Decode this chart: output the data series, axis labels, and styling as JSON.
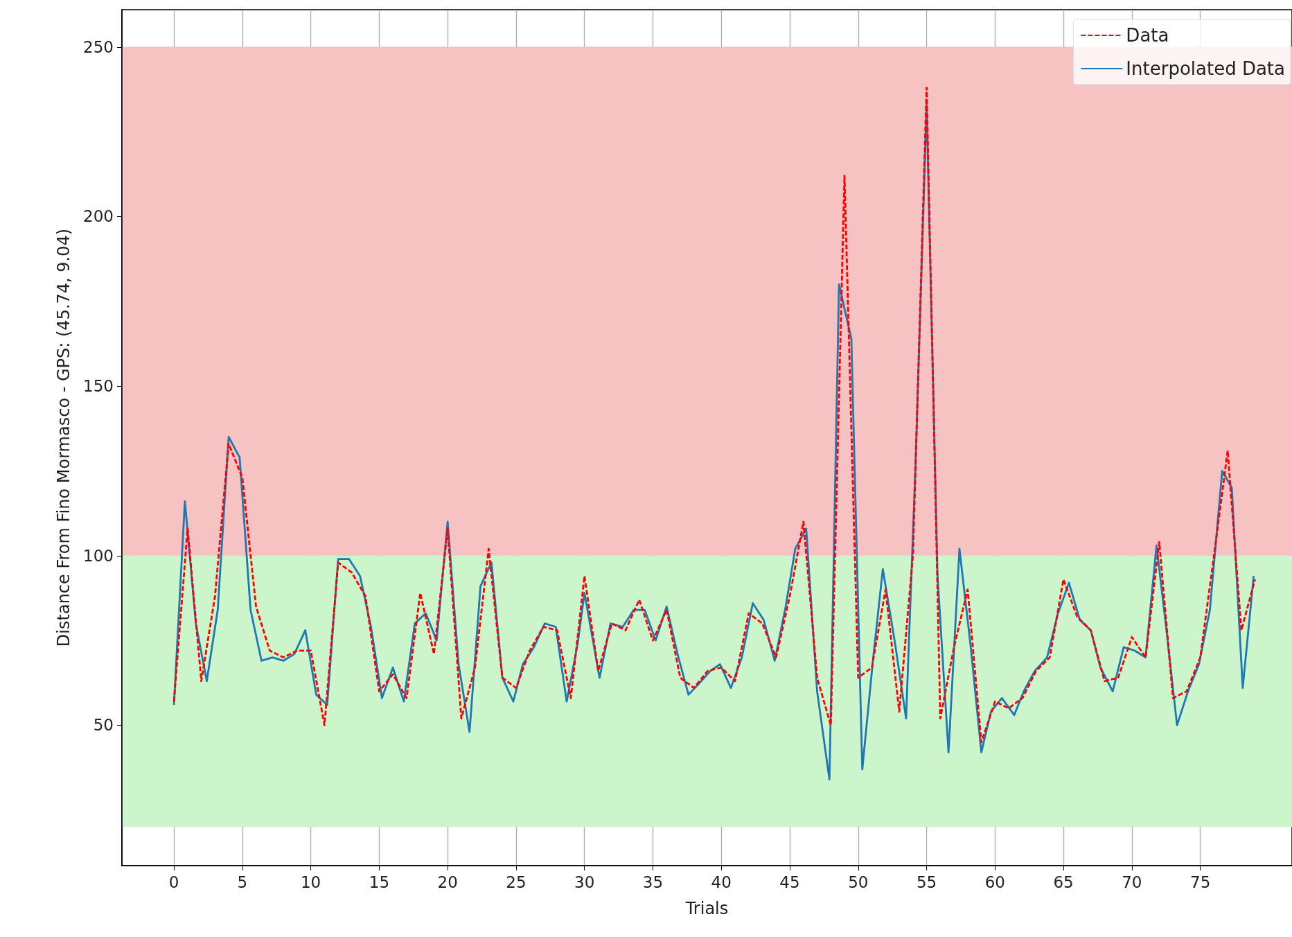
{
  "chart_data": {
    "type": "line",
    "xlabel": "Trials",
    "ylabel": "Distance From Fino Mormasco - GPS: (45.74, 9.04)",
    "xlim": [
      -3.8,
      81.7
    ],
    "ylim": [
      8.6,
      261
    ],
    "xticks": [
      0,
      5,
      10,
      15,
      20,
      25,
      30,
      35,
      40,
      45,
      50,
      55,
      60,
      65,
      70,
      75
    ],
    "yticks": [
      50,
      100,
      150,
      200,
      250
    ],
    "grid": true,
    "legend": "top right",
    "marker": "none",
    "bands": [
      {
        "axis": "y",
        "from": 20,
        "to": 100,
        "color": "#ccf5cc"
      },
      {
        "axis": "y",
        "from": 100,
        "to": 250,
        "color": "#f6c2c2"
      }
    ],
    "series": [
      {
        "name": "Data",
        "color": "#ff0000",
        "line_style": "dashed",
        "x": [
          0,
          1,
          2,
          3,
          4,
          5,
          6,
          7,
          8,
          9,
          10,
          11,
          12,
          13,
          14,
          15,
          16,
          17,
          18,
          19,
          20,
          21,
          22,
          23,
          24,
          25,
          26,
          27,
          28,
          29,
          30,
          31,
          32,
          33,
          34,
          35,
          36,
          37,
          38,
          39,
          40,
          41,
          42,
          43,
          44,
          45,
          46,
          47,
          48,
          49,
          50,
          51,
          52,
          53,
          54,
          55,
          56,
          57,
          58,
          59,
          60,
          61,
          62,
          63,
          64,
          65,
          66,
          67,
          68,
          69,
          70,
          71,
          72,
          73,
          74,
          75,
          76,
          77,
          78,
          79
        ],
        "values": [
          57,
          108,
          63,
          88,
          133,
          123,
          85,
          72,
          70,
          72,
          72,
          50,
          98,
          95,
          88,
          60,
          65,
          58,
          89,
          71,
          108,
          52,
          67,
          102,
          64,
          61,
          72,
          79,
          78,
          58,
          94,
          66,
          80,
          78,
          87,
          75,
          84,
          64,
          61,
          66,
          67,
          63,
          83,
          80,
          70,
          88,
          110,
          64,
          50,
          212,
          64,
          67,
          90,
          54,
          100,
          238,
          52,
          73,
          90,
          45,
          57,
          55,
          58,
          66,
          70,
          93,
          82,
          78,
          63,
          64,
          76,
          70,
          104,
          58,
          60,
          70,
          100,
          131,
          78,
          93
        ]
      },
      {
        "name": "Interpolated Data",
        "color": "#1f77b4",
        "line_style": "solid",
        "x": [
          0,
          0.8,
          1.6,
          2.4,
          3.2,
          4.0,
          4.8,
          5.6,
          6.4,
          7.2,
          8.0,
          8.8,
          9.6,
          10.4,
          11.2,
          12.0,
          12.8,
          13.6,
          14.4,
          15.2,
          16.0,
          16.8,
          17.6,
          18.4,
          19.2,
          20.0,
          20.8,
          21.6,
          22.4,
          23.2,
          24.0,
          24.8,
          25.5,
          26.3,
          27.1,
          27.9,
          28.7,
          29.5,
          30.0,
          31.1,
          31.9,
          32.8,
          33.6,
          34.4,
          35.2,
          36.0,
          36.8,
          37.6,
          38.3,
          39.2,
          39.9,
          40.7,
          41.5,
          42.3,
          43.1,
          43.9,
          44.7,
          45.4,
          46.2,
          47.0,
          47.9,
          48.6,
          49.5,
          50.3,
          51.1,
          51.8,
          52.7,
          53.5,
          54.2,
          55.0,
          55.8,
          56.6,
          57.4,
          58.2,
          59.0,
          59.7,
          60.5,
          61.4,
          62.1,
          62.9,
          63.8,
          64.6,
          65.4,
          66.2,
          67.0,
          67.7,
          68.6,
          69.4,
          70.2,
          71.0,
          71.8,
          72.5,
          73.3,
          74.1,
          74.9,
          75.7,
          76.6,
          77.3,
          78.1,
          78.9
        ],
        "values": [
          56,
          116,
          80,
          63,
          84,
          135,
          129,
          84,
          69,
          70,
          69,
          71,
          78,
          59,
          56,
          99,
          99,
          94,
          79,
          58,
          67,
          57,
          80,
          83,
          75,
          110,
          68,
          48,
          91,
          98,
          64,
          57,
          68,
          73,
          80,
          79,
          57,
          74,
          89,
          64,
          80,
          79,
          84,
          84,
          75,
          85,
          71,
          59,
          62,
          66,
          68,
          61,
          70,
          86,
          81,
          69,
          85,
          102,
          108,
          60,
          34,
          180,
          164,
          37,
          70,
          96,
          74,
          52,
          128,
          233,
          94,
          42,
          102,
          74,
          42,
          54,
          58,
          53,
          60,
          66,
          70,
          83,
          92,
          81,
          78,
          67,
          60,
          73,
          72,
          70,
          103,
          79,
          50,
          60,
          68,
          84,
          125,
          120,
          61,
          94
        ]
      }
    ]
  }
}
